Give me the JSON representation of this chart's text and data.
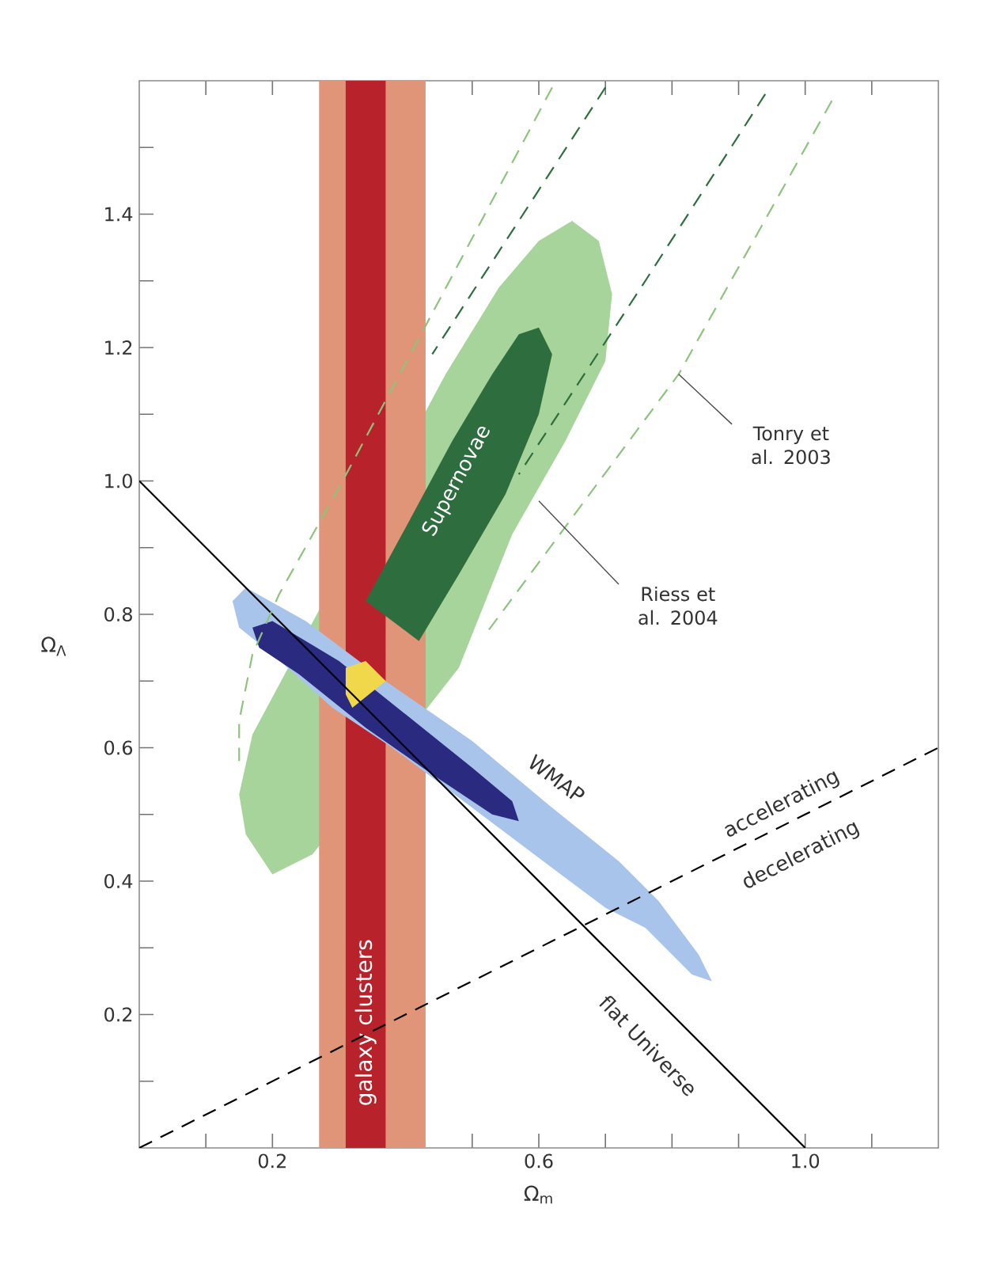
{
  "chart_data": {
    "type": "line",
    "xlabel": "Ω$_{m}$",
    "ylabel": "Ω$_{Λ}$",
    "xlim": [
      0,
      1.2
    ],
    "ylim": [
      0,
      1.6
    ],
    "xticks": [
      {
        "value": 0.1,
        "label": null
      },
      0.2,
      {
        "value": 0.3,
        "label": null
      },
      {
        "value": 0.4,
        "label": null
      },
      {
        "value": 0.5,
        "label": null
      },
      0.6,
      {
        "value": 0.7,
        "label": null
      },
      {
        "value": 0.8,
        "label": null
      },
      {
        "value": 0.9,
        "label": null
      },
      {
        "value": 1.0,
        "label": "1.0"
      },
      {
        "value": 1.1,
        "label": null
      }
    ],
    "yticks": [
      {
        "value": 0.1,
        "label": null
      },
      0.2,
      {
        "value": 0.3,
        "label": null
      },
      0.4,
      {
        "value": 0.5,
        "label": null
      },
      0.6,
      {
        "value": 0.7,
        "label": null
      },
      0.8,
      {
        "value": 0.9,
        "label": null
      },
      {
        "value": 1.0,
        "label": "1.0"
      },
      {
        "value": 1.1,
        "label": null
      },
      1.2,
      {
        "value": 1.3,
        "label": null
      },
      1.4,
      {
        "value": 1.5,
        "label": null
      }
    ],
    "grid": false,
    "bands": [
      {
        "axis": "x",
        "from": 0.27,
        "to": 0.43,
        "color": "#e09478"
      },
      {
        "axis": "x",
        "from": 0.31,
        "to": 0.37,
        "color": "#b8232b",
        "label": "galaxy clusters"
      }
    ],
    "series": [
      {
        "type": "area",
        "color": "#a6d49a",
        "x": [
          0.2,
          0.16,
          0.15,
          0.17,
          0.46,
          0.54,
          0.6,
          0.65,
          0.69,
          0.71,
          0.7,
          0.64,
          0.56,
          0.48,
          0.26,
          0.2
        ],
        "values": [
          0.41,
          0.47,
          0.53,
          0.62,
          1.16,
          1.29,
          1.36,
          1.39,
          1.36,
          1.28,
          1.18,
          1.06,
          0.92,
          0.72,
          0.44,
          0.41
        ]
      },
      {
        "type": "area",
        "name": "Supernovae",
        "color": "#2e6e3e",
        "x": [
          0.34,
          0.4,
          0.47,
          0.53,
          0.57,
          0.6,
          0.62,
          0.6,
          0.55,
          0.48,
          0.42,
          0.34
        ],
        "values": [
          0.82,
          0.93,
          1.06,
          1.16,
          1.22,
          1.23,
          1.19,
          1.1,
          0.98,
          0.86,
          0.76,
          0.82
        ]
      },
      {
        "type": "area",
        "name": "WMAP",
        "color": "#a9c4ea",
        "x": [
          0.14,
          0.16,
          0.25,
          0.37,
          0.5,
          0.62,
          0.72,
          0.78,
          0.84,
          0.86,
          0.83,
          0.76,
          0.7,
          0.62,
          0.38,
          0.29,
          0.2,
          0.15,
          0.14
        ],
        "values": [
          0.82,
          0.84,
          0.79,
          0.7,
          0.61,
          0.51,
          0.43,
          0.37,
          0.29,
          0.25,
          0.26,
          0.33,
          0.36,
          0.42,
          0.6,
          0.66,
          0.74,
          0.78,
          0.82
        ]
      },
      {
        "type": "area",
        "color": "#2a2a80",
        "x": [
          0.17,
          0.2,
          0.3,
          0.4,
          0.5,
          0.56,
          0.57,
          0.53,
          0.44,
          0.34,
          0.24,
          0.18,
          0.17
        ],
        "values": [
          0.78,
          0.79,
          0.73,
          0.65,
          0.57,
          0.52,
          0.49,
          0.5,
          0.56,
          0.63,
          0.71,
          0.75,
          0.78
        ]
      },
      {
        "type": "area",
        "color": "#f0d84a",
        "x": [
          0.31,
          0.34,
          0.37,
          0.32,
          0.31,
          0.31
        ],
        "values": [
          0.72,
          0.73,
          0.7,
          0.66,
          0.68,
          0.72
        ]
      },
      {
        "name": "flat Universe",
        "color": "#000000",
        "line_style": "solid",
        "x": [
          0,
          1
        ],
        "values": [
          1,
          0
        ]
      },
      {
        "color": "#000000",
        "line_style": "dashed",
        "x": [
          0,
          1.2
        ],
        "values": [
          0,
          0.6
        ]
      },
      {
        "color": "#8cc47e",
        "line_style": "dashed",
        "x": [
          0.62,
          0.45,
          0.3,
          0.21,
          0.17,
          0.15,
          0.15
        ],
        "values": [
          1.59,
          1.27,
          0.99,
          0.83,
          0.74,
          0.64,
          0.58
        ]
      },
      {
        "color": "#2e6e3e",
        "line_style": "dashed",
        "x": [
          0.7,
          0.57,
          0.44
        ],
        "values": [
          1.59,
          1.39,
          1.19
        ]
      },
      {
        "color": "#2e6e3e",
        "line_style": "dashed",
        "x": [
          0.94,
          0.76,
          0.57
        ],
        "values": [
          1.58,
          1.3,
          1.01
        ]
      },
      {
        "color": "#8cc47e",
        "line_style": "dashed",
        "x": [
          1.04,
          0.81,
          0.52
        ],
        "values": [
          1.57,
          1.16,
          0.77
        ]
      }
    ],
    "annotations": [
      "accelerating",
      "decelerating",
      {
        "text": "Tonry et al. 2003",
        "x": 0.81,
        "y": 1.16
      },
      {
        "text": "Riess et al. 2004",
        "x": 0.6,
        "y": 0.97
      }
    ]
  }
}
